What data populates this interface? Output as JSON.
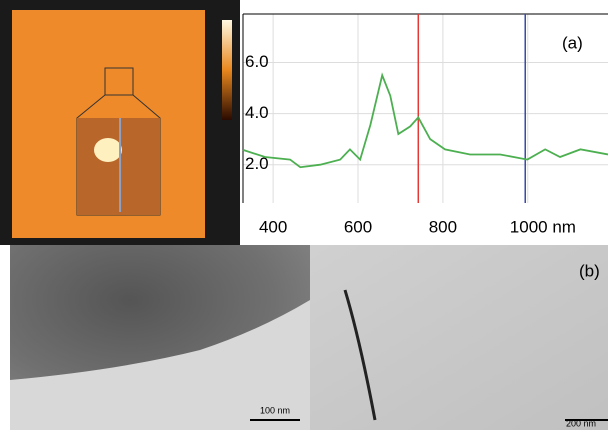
{
  "chart_data": {
    "type": "line",
    "x": [
      329,
      381,
      440,
      464,
      511,
      558,
      581,
      605,
      629,
      657,
      676,
      695,
      723,
      742,
      770,
      805,
      864,
      935,
      999,
      1041,
      1076,
      1124,
      1189
    ],
    "series": [
      {
        "color": "#4caf50",
        "values": [
          2.58,
          2.3,
          2.2,
          1.9,
          2.0,
          2.2,
          2.6,
          2.2,
          3.55,
          5.5,
          4.7,
          3.2,
          3.5,
          3.85,
          3.0,
          2.6,
          2.4,
          2.4,
          2.2,
          2.6,
          2.3,
          2.6,
          2.4
        ]
      }
    ],
    "xlim": [
      329,
      1189
    ],
    "xticks": [
      400,
      600,
      800,
      {
        "value": 1000,
        "label": "1000 nm"
      }
    ],
    "ylim": [
      0.5,
      7.9
    ],
    "yticks": [
      {
        "value": 2,
        "label": "2.0"
      },
      {
        "value": 4,
        "label": "4.0"
      },
      {
        "value": 6,
        "label": "6.0"
      }
    ],
    "grid": true,
    "markers": [
      {
        "x": 742,
        "color": "#e53935"
      },
      {
        "x": 994,
        "color": "#3949ab"
      }
    ]
  },
  "panels": {
    "label_a": "(a)",
    "label_b": "(b)",
    "scale_bar_left": "100 nm",
    "scale_bar_right": "200 nm"
  }
}
